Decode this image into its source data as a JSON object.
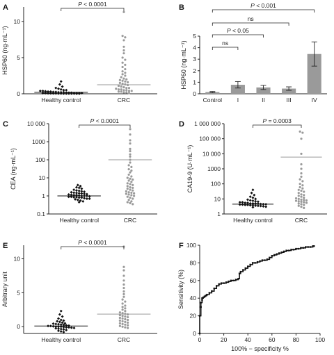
{
  "colors": {
    "healthy_dots": "#111111",
    "crc_dots": "#9a9a9a",
    "bars": "#9a9a9a",
    "axis": "#222222",
    "mean_line": "#9a9a9a",
    "healthy_mean_line": "#111111"
  },
  "chart_data": [
    {
      "panel": "A",
      "type": "scatter",
      "ylabel": "HSP60 (ng·mL⁻¹)",
      "categories": [
        "Healthy control",
        "CRC"
      ],
      "ylim": [
        0,
        12
      ],
      "y_ticks": [
        0,
        5,
        10
      ],
      "annotation": "P < 0.0001",
      "series": [
        {
          "values": [
            1.7,
            1.3,
            1.0,
            0.8,
            0.7,
            0.6,
            0.5,
            0.5,
            0.4,
            0.4,
            0.35,
            0.3,
            0.3,
            0.25,
            0.25,
            0.2,
            0.2,
            0.2,
            0.15,
            0.15,
            0.15,
            0.1,
            0.1,
            0.1,
            0.1,
            0.08,
            0.08,
            0.06,
            0.06,
            0.05,
            0.05,
            0.04,
            0.04,
            0.03,
            0.03,
            0.02,
            0.02,
            0.02,
            0.01,
            0.01
          ],
          "mean": 0.2
        },
        {
          "values": [
            11.3,
            8.0,
            7.8,
            7.4,
            6.5,
            6.0,
            5.6,
            5.0,
            4.7,
            4.3,
            4.0,
            3.7,
            3.4,
            3.1,
            2.9,
            2.7,
            2.5,
            2.3,
            2.1,
            2.0,
            1.9,
            1.8,
            1.7,
            1.6,
            1.5,
            1.4,
            1.3,
            1.2,
            1.1,
            1.0,
            0.9,
            0.8,
            0.8,
            0.7,
            0.6,
            0.6,
            0.5,
            0.5,
            0.4,
            0.4,
            0.3,
            0.3,
            0.2,
            0.2,
            0.1
          ],
          "mean": 1.25
        }
      ]
    },
    {
      "panel": "B",
      "type": "bar",
      "ylabel": "HSP60 (ng·mL⁻¹)",
      "categories": [
        "Control",
        "I",
        "II",
        "III",
        "IV"
      ],
      "values": [
        0.15,
        0.78,
        0.55,
        0.45,
        3.45
      ],
      "errors": [
        0.05,
        0.28,
        0.18,
        0.15,
        1.05
      ],
      "ylim": [
        0,
        5
      ],
      "y_ticks": [
        0,
        1,
        2,
        3,
        4,
        5
      ],
      "comparisons": [
        {
          "from": 0,
          "to": 1,
          "label": "ns"
        },
        {
          "from": 0,
          "to": 2,
          "label": "P < 0.05"
        },
        {
          "from": 0,
          "to": 3,
          "label": "ns"
        },
        {
          "from": 0,
          "to": 4,
          "label": "P < 0.001"
        }
      ]
    },
    {
      "panel": "C",
      "type": "scatter",
      "log_scale": true,
      "ylabel": "CEA (ng·mL⁻¹)",
      "categories": [
        "Healthy control",
        "CRC"
      ],
      "ylim": [
        0.1,
        10000
      ],
      "y_ticks": [
        0.1,
        1,
        10,
        100,
        1000,
        10000
      ],
      "y_tick_labels": [
        "0.1",
        "1",
        "10",
        "100",
        "1000",
        "10 000"
      ],
      "annotation": "P < 0.0001",
      "series": [
        {
          "values": [
            4.0,
            3.5,
            3.0,
            2.8,
            2.5,
            2.2,
            2.0,
            1.9,
            1.8,
            1.7,
            1.6,
            1.5,
            1.45,
            1.4,
            1.35,
            1.3,
            1.25,
            1.2,
            1.15,
            1.1,
            1.1,
            1.05,
            1.0,
            1.0,
            1.0,
            0.95,
            0.9,
            0.9,
            0.85,
            0.85,
            0.8,
            0.8,
            0.75,
            0.7,
            0.7,
            0.65,
            0.6,
            0.55,
            0.5,
            0.45
          ],
          "mean": 1.0
        },
        {
          "values": [
            5000,
            2500,
            1200,
            800,
            400,
            300,
            200,
            150,
            100,
            70,
            50,
            40,
            30,
            25,
            20,
            15,
            12,
            10,
            9,
            8,
            7,
            6,
            5,
            4.5,
            4,
            3.5,
            3,
            2.8,
            2.5,
            2.2,
            2,
            1.8,
            1.6,
            1.5,
            1.4,
            1.3,
            1.2,
            1.1,
            1.0,
            0.9,
            0.8,
            0.7,
            0.6,
            0.5,
            0.45,
            0.4,
            0.35
          ],
          "mean": 100
        }
      ]
    },
    {
      "panel": "D",
      "type": "scatter",
      "log_scale": true,
      "ylabel": "CA19-9 (U·mL⁻¹)",
      "categories": [
        "Healthy control",
        "CRC"
      ],
      "ylim": [
        1,
        1000000
      ],
      "y_ticks": [
        1,
        10,
        100,
        1000,
        10000,
        100000,
        1000000
      ],
      "y_tick_labels": [
        "1",
        "10",
        "100",
        "1000",
        "10 000",
        "100 000",
        "1 000 000"
      ],
      "annotation": "P = 0.0003",
      "series": [
        {
          "values": [
            40,
            25,
            18,
            14,
            12,
            10,
            9,
            8,
            7.5,
            7,
            6.5,
            6,
            6,
            5.5,
            5.5,
            5,
            5,
            5,
            4.8,
            4.6,
            4.5,
            4.4,
            4.2,
            4.2,
            4.0,
            4.0,
            3.8,
            3.8,
            3.6,
            3.5,
            3.4,
            3.2,
            3.0,
            2.8
          ],
          "mean": 4.5
        },
        {
          "values": [
            300000,
            250000,
            100000,
            10000,
            2000,
            1000,
            500,
            300,
            200,
            150,
            100,
            80,
            60,
            50,
            40,
            35,
            30,
            25,
            20,
            18,
            16,
            14,
            12,
            11,
            10,
            9,
            8.5,
            8,
            7.5,
            7,
            6.5,
            6,
            5.5,
            5,
            4.5,
            4,
            3.5,
            3,
            2.5
          ],
          "mean": 6000
        }
      ]
    },
    {
      "panel": "E",
      "type": "scatter",
      "ylabel": "Arbitrary unit",
      "categories": [
        "Healthy control",
        "CRC"
      ],
      "ylim": [
        -1,
        12
      ],
      "y_ticks": [
        0,
        5,
        10
      ],
      "annotation": "P < 0.0001",
      "series": [
        {
          "values": [
            2.3,
            1.8,
            1.5,
            1.2,
            1.0,
            0.9,
            0.8,
            0.7,
            0.6,
            0.5,
            0.45,
            0.4,
            0.35,
            0.3,
            0.25,
            0.2,
            0.15,
            0.1,
            0.1,
            0.05,
            0.0,
            0.0,
            0.0,
            -0.05,
            -0.1,
            -0.1,
            -0.15,
            -0.2,
            -0.25,
            -0.3,
            -0.35,
            -0.4,
            -0.5,
            -0.6,
            -0.7,
            -0.8
          ],
          "mean": 0.1
        },
        {
          "values": [
            11.8,
            8.8,
            8.3,
            7.5,
            6.8,
            6.2,
            5.7,
            5.2,
            4.8,
            4.4,
            4.0,
            3.7,
            3.4,
            3.1,
            2.9,
            2.7,
            2.5,
            2.3,
            2.1,
            2.0,
            1.9,
            1.8,
            1.7,
            1.6,
            1.5,
            1.4,
            1.3,
            1.2,
            1.1,
            1.0,
            0.9,
            0.8,
            0.7,
            0.6,
            0.5,
            0.4,
            0.3,
            0.2,
            0.1,
            0.0,
            -0.1,
            -0.2
          ],
          "mean": 1.85
        }
      ]
    },
    {
      "panel": "F",
      "type": "line",
      "xlabel": "100% − specificity %",
      "ylabel": "Sensitivity (%)",
      "xlim": [
        0,
        100
      ],
      "ylim": [
        0,
        100
      ],
      "x_ticks": [
        0,
        20,
        40,
        60,
        80,
        100
      ],
      "y_ticks": [
        0,
        20,
        40,
        60,
        80,
        100
      ],
      "x": [
        0,
        0,
        1,
        1,
        2,
        2,
        3,
        4,
        5,
        6,
        8,
        10,
        12,
        14,
        16,
        18,
        20,
        22,
        24,
        26,
        28,
        30,
        32,
        33,
        34,
        36,
        38,
        40,
        42,
        44,
        46,
        48,
        50,
        52,
        54,
        56,
        58,
        60,
        62,
        64,
        66,
        68,
        70,
        72,
        74,
        76,
        78,
        80,
        82,
        84,
        86,
        88,
        90,
        92,
        94,
        95
      ],
      "y": [
        0,
        20,
        30,
        35,
        38,
        40,
        41,
        42,
        43,
        44,
        46,
        48,
        51,
        54,
        56,
        57,
        57,
        58,
        59,
        60,
        60,
        61,
        62,
        68,
        70,
        72,
        74,
        76,
        78,
        80,
        80,
        81,
        82,
        83,
        83,
        84,
        86,
        88,
        89,
        90,
        91,
        92,
        93,
        94,
        94,
        95,
        95,
        96,
        96,
        97,
        97,
        98,
        98,
        98,
        99,
        99
      ]
    }
  ]
}
